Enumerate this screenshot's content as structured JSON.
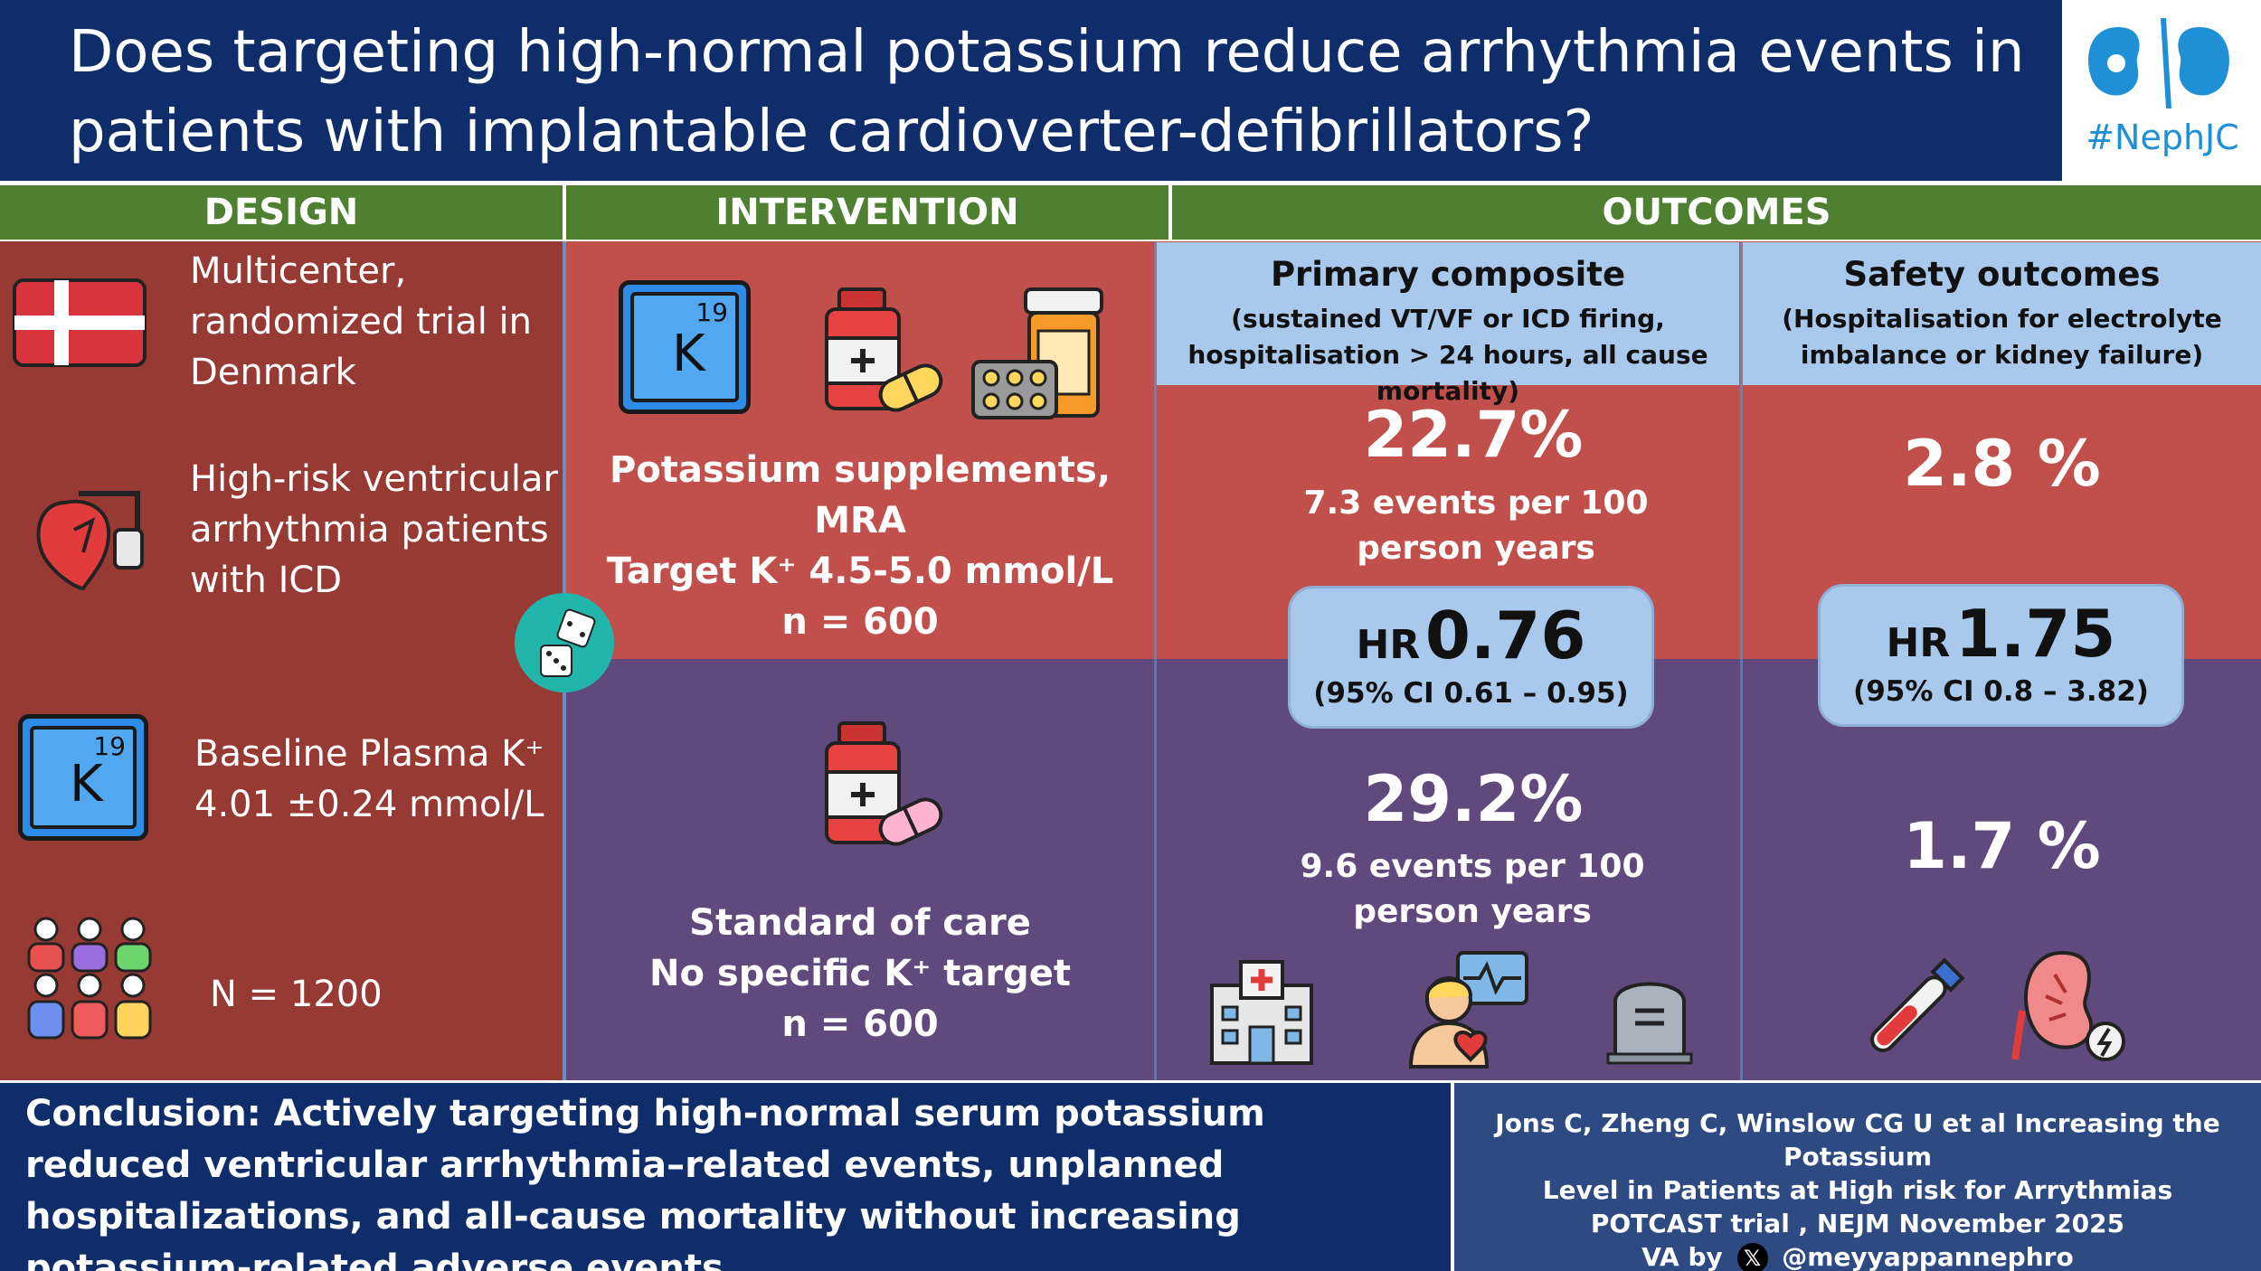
{
  "header": {
    "title": "Does targeting high-normal potassium reduce arrhythmia events in patients with implantable cardioverter-defibrillators?",
    "logo_text": "#NephJC"
  },
  "sections": {
    "design": "DESIGN",
    "intervention": "INTERVENTION",
    "outcomes": "OUTCOMES"
  },
  "design": {
    "trial": "Multicenter, randomized trial in Denmark",
    "population": "High-risk ventricular arrhythmia patients with ICD",
    "baseline_line1": "Baseline Plasma K⁺",
    "baseline_line2": "4.01 ±0.24 mmol/L",
    "n": "N = 1200",
    "k_tile_number": "19",
    "k_tile_symbol": "K"
  },
  "intervention": {
    "arm1_line1": "Potassium supplements, MRA",
    "arm1_line2": "Target K⁺ 4.5-5.0 mmol/L",
    "arm1_line3": "n = 600",
    "arm2_line1": "Standard of care",
    "arm2_line2": "No specific K⁺ target",
    "arm2_line3": "n = 600",
    "k_tile_number": "19",
    "k_tile_symbol": "K"
  },
  "outcomes": {
    "primary": {
      "title": "Primary composite",
      "subtitle": "(sustained VT/VF or ICD firing, hospitalisation > 24 hours, all cause mortality)",
      "intervention_pct": "22.7%",
      "intervention_events": "7.3 events per 100 person years",
      "control_pct": "29.2%",
      "control_events": "9.6 events per 100 person years",
      "hr_label": "HR",
      "hr_value": "0.76",
      "hr_ci": "(95% CI 0.61 – 0.95)"
    },
    "safety": {
      "title": "Safety outcomes",
      "subtitle": "(Hospitalisation for electrolyte imbalance or kidney failure)",
      "intervention_pct": "2.8 %",
      "control_pct": "1.7 %",
      "hr_label": "HR",
      "hr_value": "1.75",
      "hr_ci": "(95% CI 0.8 – 3.82)"
    }
  },
  "footer": {
    "conclusion": "Conclusion: Actively targeting high-normal serum potassium reduced ventricular arrhythmia–related events, unplanned hospitalizations, and all-cause mortality without increasing potassium-related adverse events.",
    "citation_line1": "Jons C, Zheng C, Winslow CG U et al Increasing the Potassium",
    "citation_line2": "Level in Patients at High risk for Arrythmias",
    "citation_line3": "POTCAST trial , NEJM November 2025",
    "citation_va": "VA by",
    "citation_handle": "@meyyappannephro",
    "x_glyph": "𝕏"
  },
  "colors": {
    "navy": "#0f2d6b",
    "green": "#4f7f31",
    "dark_red": "#973a34",
    "red": "#c1504c",
    "purple": "#60497c",
    "light_blue": "#a8c8ec"
  }
}
